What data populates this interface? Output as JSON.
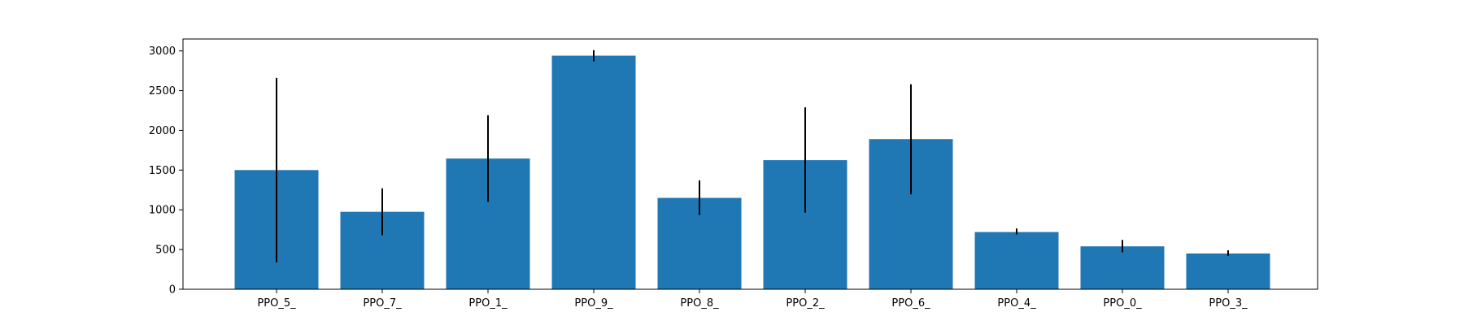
{
  "chart_data": {
    "type": "bar",
    "categories": [
      "PPO_5_",
      "PPO_7_",
      "PPO_1_",
      "PPO_9_",
      "PPO_8_",
      "PPO_2_",
      "PPO_6_",
      "PPO_4_",
      "PPO_0_",
      "PPO_3_"
    ],
    "values": [
      1500,
      975,
      1645,
      2940,
      1150,
      1625,
      1890,
      720,
      540,
      450
    ],
    "error_bars": [
      [
        340,
        2660
      ],
      [
        680,
        1270
      ],
      [
        1100,
        2190
      ],
      [
        2870,
        3010
      ],
      [
        935,
        1370
      ],
      [
        965,
        2290
      ],
      [
        1195,
        2580
      ],
      [
        690,
        765
      ],
      [
        465,
        620
      ],
      [
        420,
        490
      ]
    ],
    "title": "",
    "xlabel": "",
    "ylabel": "",
    "ylim": [
      0,
      3150
    ],
    "yticks": [
      0,
      500,
      1000,
      1500,
      2000,
      2500,
      3000
    ],
    "grid": false,
    "legend": "none",
    "bar_color": "#1f77b4",
    "error_color": "#000000"
  }
}
